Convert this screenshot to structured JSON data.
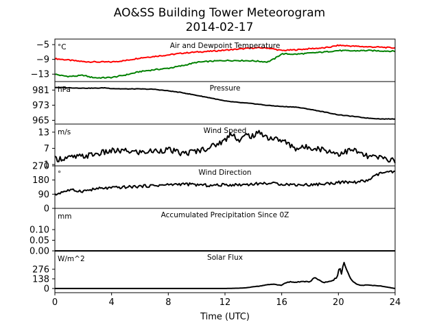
{
  "title": [
    "AO&SS Building Tower Meteorogram",
    "2014-02-17"
  ],
  "colors": {
    "air": "#ff0000",
    "dew": "#008000",
    "line": "#000000"
  },
  "chart_data": {
    "type": "line",
    "xlabel": "Time (UTC)",
    "xlim": [
      0,
      24
    ],
    "xticks": [
      "0",
      "4",
      "8",
      "12",
      "16",
      "20",
      "24"
    ],
    "panels": [
      {
        "title": "Air and Dewpoint Temperature",
        "unit": "°C",
        "ylim": [
          -15,
          -3.5
        ],
        "yticks": [
          {
            "v": -5,
            "label": "−5"
          },
          {
            "v": -9,
            "label": "−9"
          },
          {
            "v": -13,
            "label": "−13"
          }
        ],
        "series": [
          {
            "color": "#ff0000",
            "x": [
              0,
              0.5,
              1,
              1.5,
              2,
              3,
              4,
              5,
              6,
              7,
              8,
              9,
              10,
              11,
              12,
              13,
              14,
              15,
              16,
              17,
              18,
              19,
              19.5,
              20,
              21,
              22,
              23,
              24
            ],
            "y": [
              -8.8,
              -9.0,
              -9.2,
              -9.4,
              -9.6,
              -9.7,
              -9.7,
              -9.3,
              -8.6,
              -8.2,
              -7.8,
              -7.3,
              -7.0,
              -6.8,
              -6.5,
              -6.2,
              -5.9,
              -5.9,
              -6.6,
              -6.4,
              -6.1,
              -5.9,
              -5.6,
              -5.2,
              -5.4,
              -5.6,
              -5.7,
              -5.9
            ]
          },
          {
            "color": "#008000",
            "x": [
              0,
              0.5,
              1,
              1.5,
              2,
              2.5,
              3,
              4,
              5,
              6,
              7,
              8,
              9,
              10,
              11,
              12,
              13,
              14,
              15,
              15.5,
              16,
              17,
              18,
              19,
              20,
              21,
              22,
              23,
              24
            ],
            "y": [
              -13.0,
              -13.4,
              -13.6,
              -13.5,
              -13.3,
              -13.8,
              -14.0,
              -13.9,
              -13.2,
              -12.3,
              -11.8,
              -11.4,
              -10.7,
              -9.8,
              -9.5,
              -9.3,
              -9.3,
              -9.4,
              -9.7,
              -8.8,
              -7.5,
              -7.6,
              -7.3,
              -7.0,
              -6.6,
              -6.7,
              -6.6,
              -6.7,
              -6.8
            ]
          }
        ]
      },
      {
        "title": "Pressure",
        "unit": "hPa",
        "ylim": [
          963,
          985.5
        ],
        "yticks": [
          {
            "v": 981,
            "label": "981"
          },
          {
            "v": 973,
            "label": "973"
          },
          {
            "v": 965,
            "label": "965"
          }
        ],
        "series": [
          {
            "color": "#000000",
            "x": [
              0,
              1,
              2,
              3,
              3.5,
              4,
              5,
              6,
              7,
              8,
              9,
              10,
              11,
              12,
              13,
              14,
              15,
              16,
              17,
              18,
              19,
              20,
              21,
              22,
              23,
              24
            ],
            "y": [
              982.4,
              982.2,
              982.0,
              982.0,
              982.2,
              981.8,
              981.6,
              981.6,
              981.4,
              980.6,
              979.6,
              978.2,
              976.8,
              975.2,
              974.4,
              973.8,
              972.9,
              972.3,
              972.0,
              970.8,
              969.4,
              967.9,
              967.1,
              966.2,
              965.7,
              965.7
            ]
          }
        ]
      },
      {
        "title": "Wind Speed",
        "unit": "m/s",
        "ylim": [
          0.5,
          16
        ],
        "yticks": [
          {
            "v": 13,
            "label": "13"
          },
          {
            "v": 7,
            "label": "7"
          },
          {
            "v": 1,
            "label": "1"
          }
        ],
        "series": [
          {
            "color": "#000000",
            "x": [
              0,
              1,
              2,
              3,
              4,
              5,
              6,
              7,
              8,
              9,
              10,
              11,
              12,
              12.5,
              13,
              13.5,
              14,
              14.5,
              15,
              16,
              17,
              18,
              19,
              20,
              21,
              22,
              23,
              24
            ],
            "y": [
              3.0,
              3.5,
              4.0,
              5.0,
              6.0,
              6.0,
              5.5,
              6.0,
              6.5,
              5.0,
              6.0,
              7.5,
              10.0,
              13.0,
              9.5,
              12.0,
              11.5,
              13.0,
              11.0,
              10.0,
              7.0,
              7.5,
              6.5,
              5.0,
              6.5,
              4.0,
              3.5,
              2.5
            ]
          }
        ]
      },
      {
        "title": "Wind Direction",
        "unit": "°",
        "ylim": [
          0,
          270
        ],
        "yticks": [
          {
            "v": 270,
            "label": "270"
          },
          {
            "v": 180,
            "label": "180"
          },
          {
            "v": 90,
            "label": "90"
          },
          {
            "v": 0,
            "label": "0"
          }
        ],
        "series": [
          {
            "color": "#000000",
            "x": [
              0,
              0.5,
              1,
              2,
              3,
              4,
              5,
              6,
              7,
              8,
              9,
              10,
              11,
              12,
              13,
              14,
              15,
              16,
              17,
              18,
              19,
              20,
              21,
              22,
              22.5,
              23,
              23.5,
              24
            ],
            "y": [
              85,
              105,
              115,
              110,
              125,
              130,
              135,
              140,
              145,
              150,
              155,
              150,
              145,
              150,
              150,
              155,
              160,
              155,
              150,
              150,
              155,
              165,
              165,
              175,
              200,
              225,
              230,
              230
            ]
          }
        ]
      },
      {
        "title": "Accumulated Precipitation Since 0Z",
        "unit": "mm",
        "ylim": [
          0,
          0.2
        ],
        "yticks": [
          {
            "v": 0.1,
            "label": "0.10"
          },
          {
            "v": 0.05,
            "label": "0.05"
          },
          {
            "v": 0,
            "label": "0.00"
          }
        ],
        "series": [
          {
            "color": "#000000",
            "x": [
              0,
              24
            ],
            "y": [
              0,
              0
            ]
          }
        ]
      },
      {
        "title": "Solar Flux",
        "unit": "W/m^2",
        "ylim": [
          -60,
          540
        ],
        "yticks": [
          {
            "v": 276,
            "label": "276"
          },
          {
            "v": 138,
            "label": "138"
          },
          {
            "v": 0,
            "label": "0"
          }
        ],
        "series": [
          {
            "color": "#000000",
            "x": [
              0,
              12,
              13,
              13.5,
              14,
              14.5,
              15,
              15.5,
              16,
              16.3,
              16.6,
              17,
              17.5,
              18,
              18.3,
              18.6,
              19,
              19.3,
              19.6,
              19.9,
              20.1,
              20.2,
              20.4,
              20.6,
              20.8,
              21,
              21.3,
              21.6,
              22,
              23,
              24
            ],
            "y": [
              0,
              0,
              5,
              10,
              25,
              35,
              55,
              60,
              45,
              85,
              95,
              90,
              100,
              95,
              165,
              120,
              85,
              100,
              115,
              160,
              330,
              200,
              380,
              250,
              170,
              110,
              60,
              45,
              50,
              35,
              0
            ]
          }
        ]
      }
    ]
  }
}
